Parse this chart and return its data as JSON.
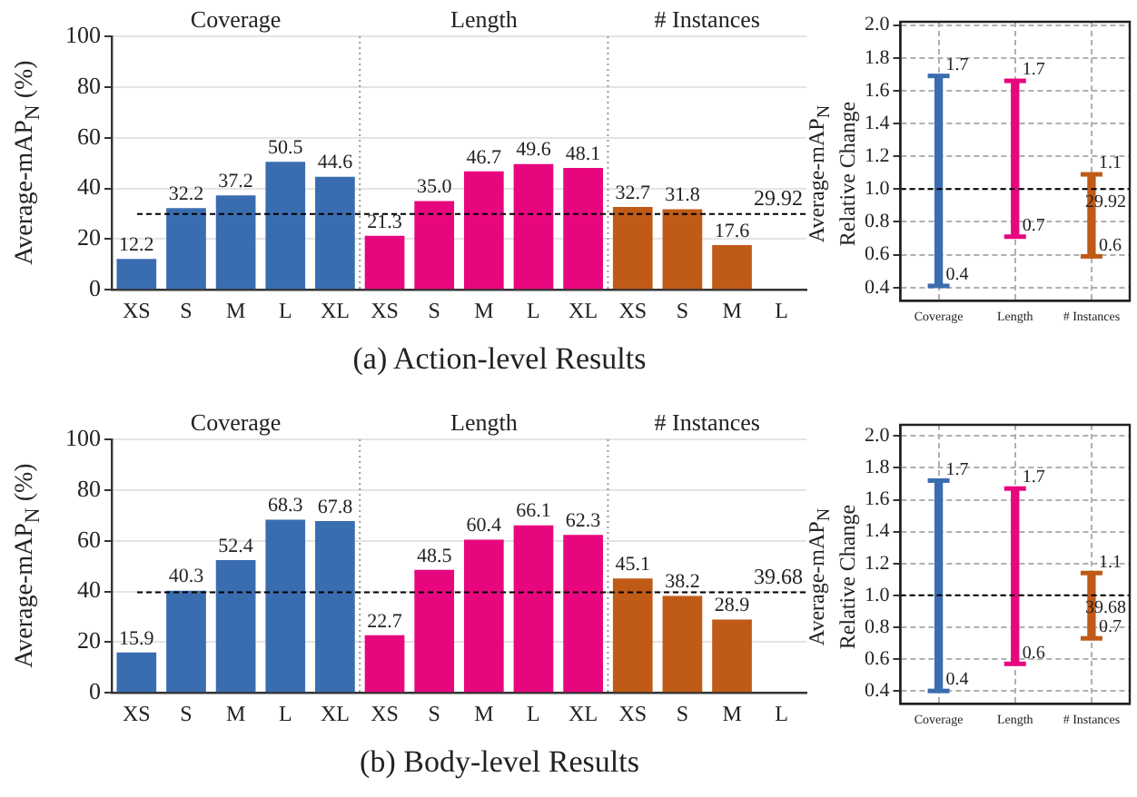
{
  "chart_data": [
    {
      "type": "bar",
      "ylabel": "Average-mAP$_{N}$ (%)",
      "categories": [
        "XS",
        "S",
        "M",
        "L",
        "XL",
        "XS",
        "S",
        "M",
        "L",
        "XL",
        "XS",
        "S",
        "M",
        "L"
      ],
      "values": [
        12.2,
        32.2,
        37.2,
        50.5,
        44.6,
        21.3,
        35.0,
        46.7,
        49.6,
        48.1,
        32.7,
        31.8,
        17.6,
        null
      ],
      "value_labels": [
        "12.2",
        "32.2",
        "37.2",
        "50.5",
        "44.6",
        "21.3",
        "35.0",
        "46.7",
        "49.6",
        "48.1",
        "32.7",
        "31.8",
        "17.6",
        null
      ],
      "colors": [
        "#3a6db0",
        "#3a6db0",
        "#3a6db0",
        "#3a6db0",
        "#3a6db0",
        "#e8067f",
        "#e8067f",
        "#e8067f",
        "#e8067f",
        "#e8067f",
        "#c05a17",
        "#c05a17",
        "#c05a17",
        "#c05a17"
      ],
      "ylim": [
        0,
        100
      ],
      "yticks": [
        0,
        20,
        40,
        60,
        80,
        100
      ],
      "grid": "y",
      "ref_lines": [
        {
          "axis": "y",
          "value": 29.92,
          "label": "29.92",
          "color": "#000000",
          "line_style": "dashed"
        }
      ],
      "annotations": [
        "Coverage",
        "Length",
        "# Instances",
        "(a) Action-level Results"
      ]
    },
    {
      "type": "bar",
      "ylabel": "Average-mAP$_{N}$ Relative Change",
      "categories": [
        "Coverage",
        "Length",
        "# Instances"
      ],
      "base": [
        0.41,
        0.71,
        0.59
      ],
      "values": [
        1.28,
        0.95,
        0.5
      ],
      "colors": [
        "#3a6db0",
        "#e8067f",
        "#c05a17"
      ],
      "ylim": [
        0.32,
        2.02
      ],
      "yticks": [
        {
          "value": 0.4,
          "label": "0.4"
        },
        {
          "value": 0.6,
          "label": "0.6"
        },
        {
          "value": 0.8,
          "label": "0.8"
        },
        {
          "value": 1.0,
          "label": "1.0"
        },
        {
          "value": 1.2,
          "label": "1.2"
        },
        {
          "value": 1.4,
          "label": "1.4"
        },
        {
          "value": 1.6,
          "label": "1.6"
        },
        {
          "value": 1.8,
          "label": "1.8"
        },
        {
          "value": 2.0,
          "label": "2.0"
        }
      ],
      "grid": true,
      "ref_lines": [
        {
          "axis": "y",
          "value": 1.0,
          "color": "#000000",
          "line_style": "dashed"
        }
      ],
      "annotations": [
        "29.92",
        {
          "text": "1.7",
          "x": "Coverage",
          "y": 1.69
        },
        {
          "text": "0.4",
          "x": "Coverage",
          "y": 0.41
        },
        {
          "text": "1.7",
          "x": "Length",
          "y": 1.66
        },
        {
          "text": "0.7",
          "x": "Length",
          "y": 0.71
        },
        {
          "text": "1.1",
          "x": "# Instances",
          "y": 1.09
        },
        {
          "text": "0.6",
          "x": "# Instances",
          "y": 0.59
        }
      ]
    },
    {
      "type": "bar",
      "ylabel": "Average-mAP$_{N}$ (%)",
      "categories": [
        "XS",
        "S",
        "M",
        "L",
        "XL",
        "XS",
        "S",
        "M",
        "L",
        "XL",
        "XS",
        "S",
        "M",
        "L"
      ],
      "values": [
        15.9,
        40.3,
        52.4,
        68.3,
        67.8,
        22.7,
        48.5,
        60.4,
        66.1,
        62.3,
        45.1,
        38.2,
        28.9,
        null
      ],
      "value_labels": [
        "15.9",
        "40.3",
        "52.4",
        "68.3",
        "67.8",
        "22.7",
        "48.5",
        "60.4",
        "66.1",
        "62.3",
        "45.1",
        "38.2",
        "28.9",
        null
      ],
      "colors": [
        "#3a6db0",
        "#3a6db0",
        "#3a6db0",
        "#3a6db0",
        "#3a6db0",
        "#e8067f",
        "#e8067f",
        "#e8067f",
        "#e8067f",
        "#e8067f",
        "#c05a17",
        "#c05a17",
        "#c05a17",
        "#c05a17"
      ],
      "ylim": [
        0,
        100
      ],
      "yticks": [
        0,
        20,
        40,
        60,
        80,
        100
      ],
      "grid": "y",
      "ref_lines": [
        {
          "axis": "y",
          "value": 39.68,
          "label": "39.68",
          "color": "#000000",
          "line_style": "dashed"
        }
      ],
      "annotations": [
        "Coverage",
        "Length",
        "# Instances",
        "(b) Body-level Results"
      ]
    },
    {
      "type": "bar",
      "ylabel": "Average-mAP$_{N}$ Relative Change",
      "categories": [
        "Coverage",
        "Length",
        "# Instances"
      ],
      "base": [
        0.4,
        0.57,
        0.73
      ],
      "values": [
        1.32,
        1.1,
        0.41
      ],
      "colors": [
        "#3a6db0",
        "#e8067f",
        "#c05a17"
      ],
      "ylim": [
        0.32,
        2.07
      ],
      "yticks": [
        {
          "value": 0.4,
          "label": "0.4"
        },
        {
          "value": 0.6,
          "label": "0.6"
        },
        {
          "value": 0.8,
          "label": "0.8"
        },
        {
          "value": 1.0,
          "label": "1.0"
        },
        {
          "value": 1.2,
          "label": "1.2"
        },
        {
          "value": 1.4,
          "label": "1.4"
        },
        {
          "value": 1.6,
          "label": "1.6"
        },
        {
          "value": 1.8,
          "label": "1.8"
        },
        {
          "value": 2.0,
          "label": "2.0"
        }
      ],
      "grid": true,
      "ref_lines": [
        {
          "axis": "y",
          "value": 1.0,
          "color": "#000000",
          "line_style": "dashed"
        }
      ],
      "annotations": [
        "39.68",
        {
          "text": "1.7",
          "x": "Coverage",
          "y": 1.72
        },
        {
          "text": "0.4",
          "x": "Coverage",
          "y": 0.4
        },
        {
          "text": "1.7",
          "x": "Length",
          "y": 1.67
        },
        {
          "text": "0.6",
          "x": "Length",
          "y": 0.57
        },
        {
          "text": "1.1",
          "x": "# Instances",
          "y": 1.14
        },
        {
          "text": "0.7",
          "x": "# Instances",
          "y": 0.73
        }
      ]
    }
  ]
}
